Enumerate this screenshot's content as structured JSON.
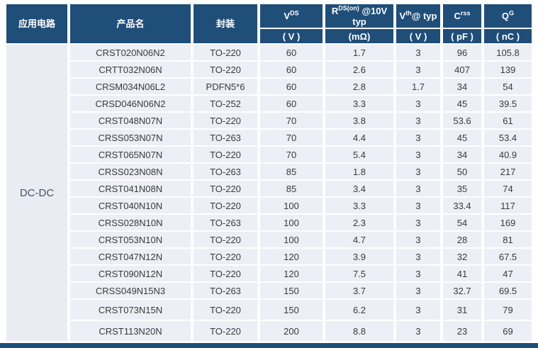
{
  "header": {
    "app_circuit": "应用电路",
    "product": "产品名",
    "package": "封装",
    "spec_cols": [
      {
        "base": "V",
        "sup": "DS",
        "rest": "",
        "unit": "( V )"
      },
      {
        "base": "R",
        "sup": "DS(on)",
        "rest": " @10V typ",
        "unit": "(mΩ)"
      },
      {
        "base": "V",
        "sup": "th",
        "rest": "@ typ",
        "unit": "( V )"
      },
      {
        "base": "C",
        "sup": "rss",
        "rest": "",
        "unit": "( pF )"
      },
      {
        "base": "Q",
        "sup": "G",
        "rest": "",
        "unit": "( nC )"
      }
    ]
  },
  "colors": {
    "header_bg": "#1F4E79",
    "cell_bg": "#ECEFF5",
    "app_cell_bg": "#E9ECF3",
    "cell_text": "#3A3A3A",
    "app_cell_text": "#44546A",
    "separator": "#FFFFFF"
  },
  "chart_data": {
    "type": "table",
    "application_circuit": "DC-DC",
    "columns": [
      "应用电路",
      "产品名",
      "封装",
      "VDS (V)",
      "RDS(on) @10V typ (mΩ)",
      "Vth@ typ (V)",
      "Crss (pF)",
      "QG (nC)"
    ],
    "row_fields": [
      "product-name",
      "package",
      "vds",
      "rds-on",
      "vth",
      "crss",
      "qg"
    ],
    "rows": [
      [
        "CRST020N06N2",
        "TO-220",
        60,
        1.7,
        3,
        96,
        105.8
      ],
      [
        "CRTT032N06N",
        "TO-220",
        60,
        2.6,
        3,
        407,
        139
      ],
      [
        "CRSM034N06L2",
        "PDFN5*6",
        60,
        2.8,
        1.7,
        34,
        54
      ],
      [
        "CRSD046N06N2",
        "TO-252",
        60,
        3.3,
        3,
        45,
        39.5
      ],
      [
        "CRST048N07N",
        "TO-220",
        70,
        3.8,
        3,
        53.6,
        61
      ],
      [
        "CRSS053N07N",
        "TO-263",
        70,
        4.4,
        3,
        45,
        53.4
      ],
      [
        "CRST065N07N",
        "TO-220",
        70,
        5.4,
        3,
        34,
        40.9
      ],
      [
        "CRSS023N08N",
        "TO-263",
        85,
        1.8,
        3,
        50,
        217
      ],
      [
        "CRST041N08N",
        "TO-220",
        85,
        3.4,
        3,
        35,
        74
      ],
      [
        "CRST040N10N",
        "TO-220",
        100,
        3.3,
        3,
        33.4,
        117
      ],
      [
        "CRSS028N10N",
        "TO-263",
        100,
        2.3,
        3,
        54,
        169
      ],
      [
        "CRST053N10N",
        "TO-220",
        100,
        4.7,
        3,
        28,
        81
      ],
      [
        "CRST047N12N",
        "TO-220",
        120,
        3.9,
        3,
        32,
        67.5
      ],
      [
        "CRST090N12N",
        "TO-220",
        120,
        7.5,
        3,
        41,
        47
      ],
      [
        "CRSS049N15N3",
        "TO-263",
        150,
        3.7,
        3,
        32.7,
        69.5
      ],
      [
        "CRST073N15N",
        "TO-220",
        150,
        6.2,
        3,
        31,
        79
      ],
      [
        "CRST113N20N",
        "TO-220",
        200,
        8.8,
        3,
        23,
        69
      ]
    ],
    "tall_row_indices": [
      15,
      16
    ]
  }
}
